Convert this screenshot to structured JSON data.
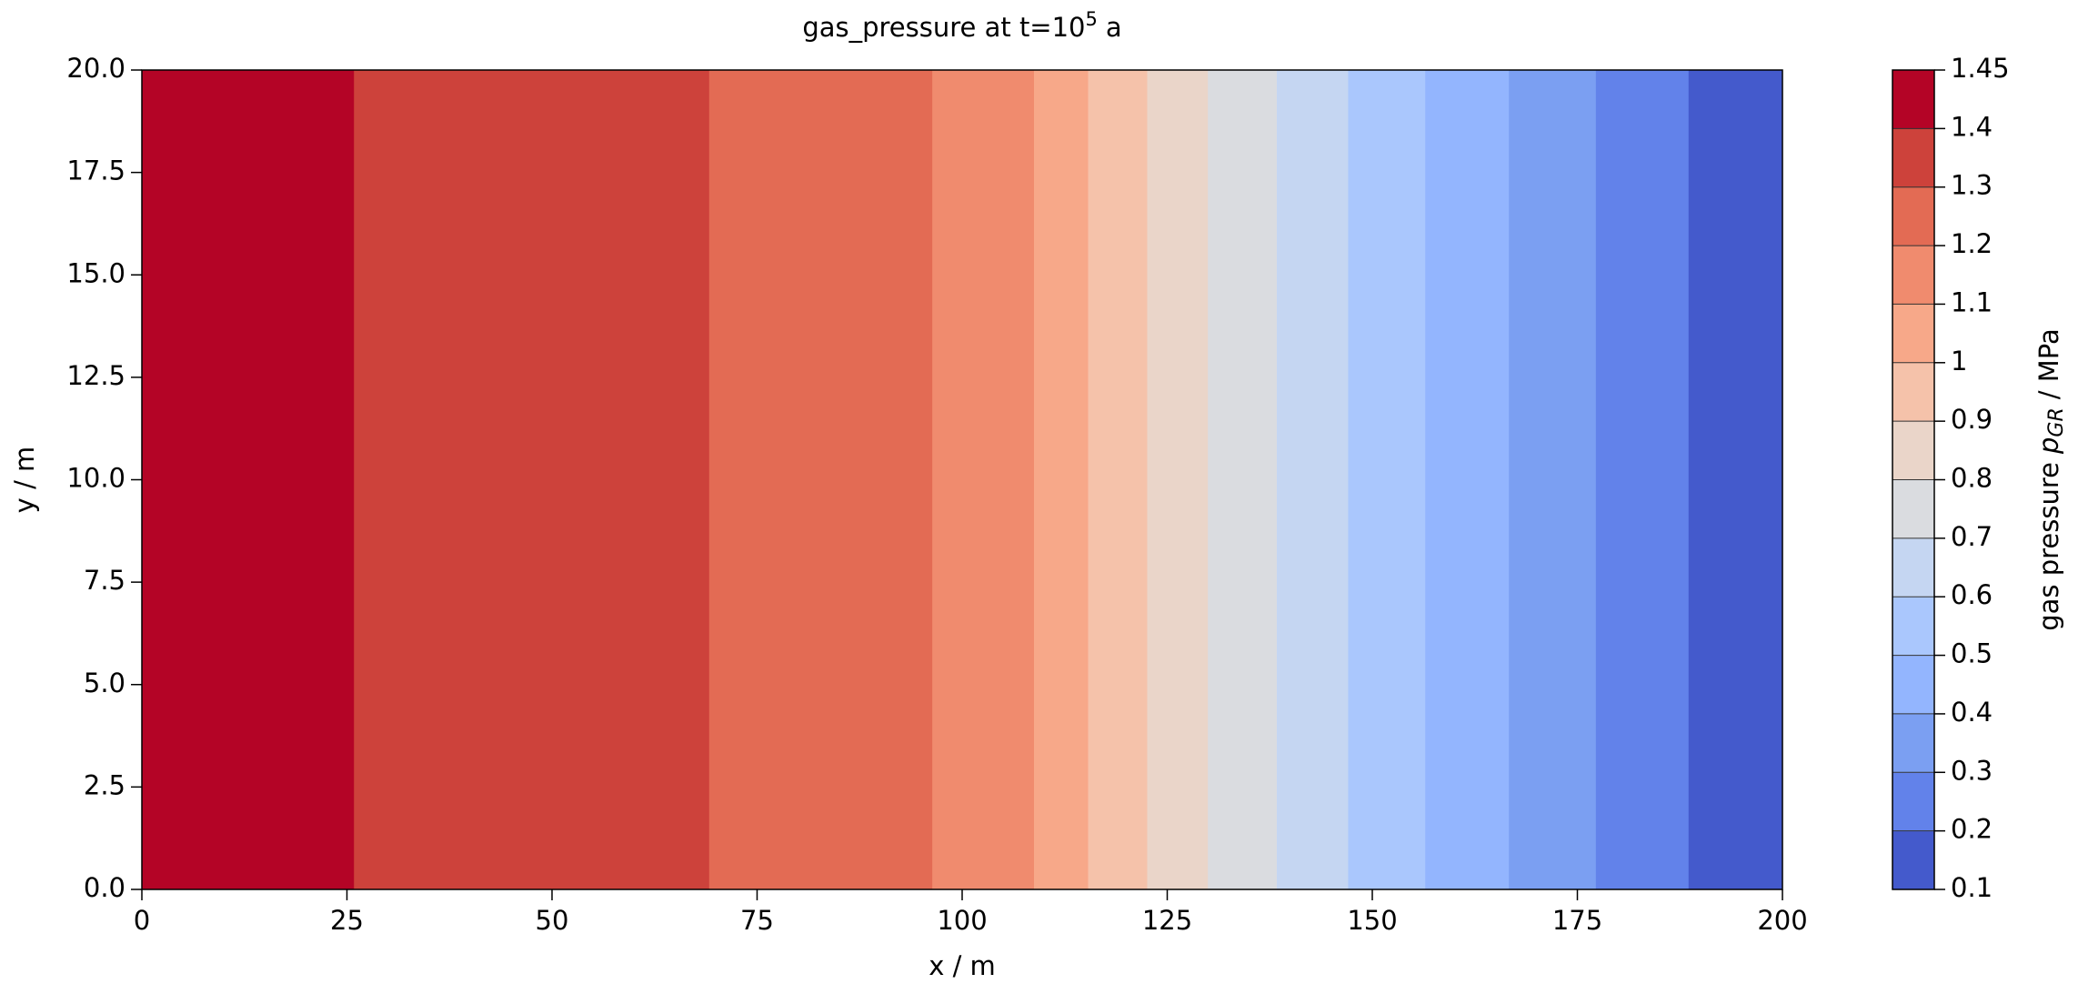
{
  "chart_data": {
    "type": "contourf",
    "title": {
      "text": "gas_pressure at t=10",
      "superscript": "5",
      "suffix": "a"
    },
    "x_label": "x / m",
    "y_label": "y / m",
    "colorbar_label": {
      "text": "gas pressure",
      "symbol": "p",
      "subscript": "GR",
      "unit": "/ MPa"
    },
    "xlim": [
      0,
      200
    ],
    "ylim": [
      0,
      20
    ],
    "xticks": [
      0,
      25,
      50,
      75,
      100,
      125,
      150,
      175,
      200
    ],
    "yticks": [
      {
        "value": 0,
        "label": "0.0"
      },
      2.5,
      {
        "value": 5,
        "label": "5.0"
      },
      7.5,
      {
        "value": 10,
        "label": "10.0"
      },
      12.5,
      {
        "value": 15,
        "label": "15.0"
      },
      17.5,
      {
        "value": 20,
        "label": "20.0"
      }
    ],
    "levels": [
      0.1,
      0.2,
      0.3,
      0.4,
      0.5,
      0.6,
      0.7,
      0.8,
      0.9,
      1,
      1.1,
      1.2,
      1.3,
      1.4,
      1.45
    ],
    "x_edges": [
      200,
      188.5,
      177.2,
      166.6,
      156.4,
      147.0,
      138.3,
      129.9,
      122.5,
      115.3,
      108.7,
      96.3,
      69.1,
      25.8,
      0
    ],
    "colors": [
      "#445acc",
      "#6282ea",
      "#7b9ff2",
      "#93b5fe",
      "#aac7fd",
      "#c5d6f2",
      "#dadce0",
      "#ead5c9",
      "#f5c2aa",
      "#f7a889",
      "#f08b6e",
      "#e36b54",
      "#cd423b",
      "#b40426"
    ]
  }
}
